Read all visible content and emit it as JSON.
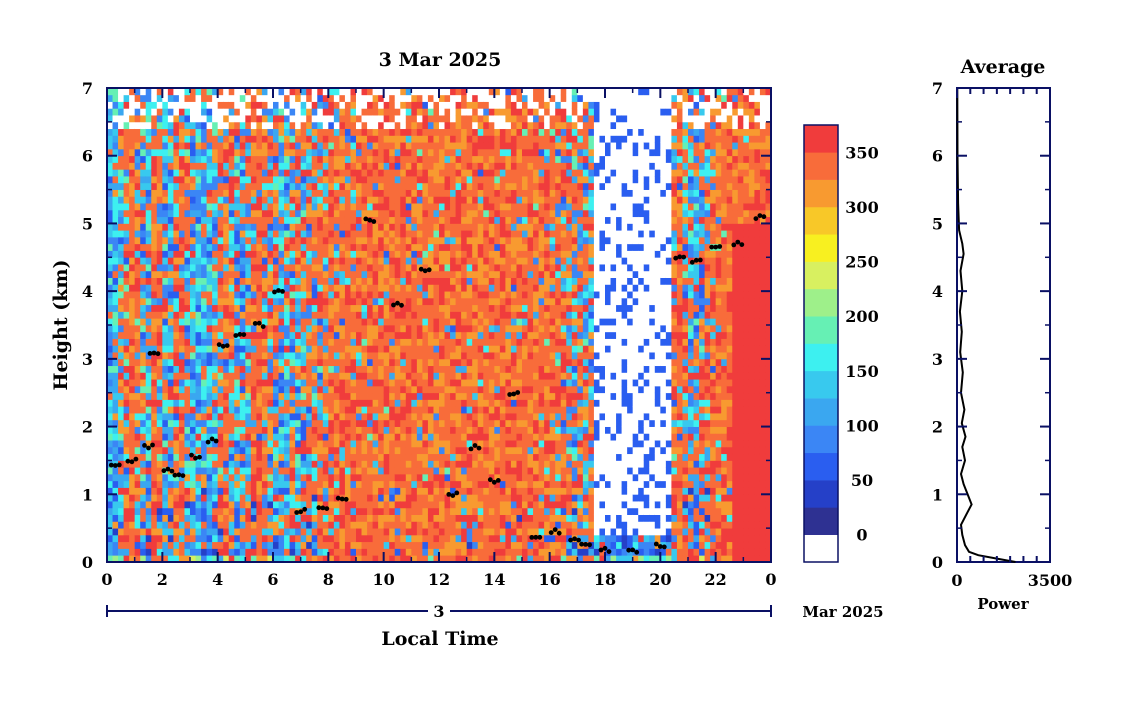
{
  "chart_data": [
    {
      "type": "heatmap",
      "title": "3 Mar 2025",
      "xlabel": "Local Time",
      "ylabel": "Height (km)",
      "xlim": [
        0,
        24
      ],
      "ylim": [
        0,
        7
      ],
      "x_ticks": [
        "0",
        "2",
        "4",
        "6",
        "8",
        "10",
        "12",
        "14",
        "16",
        "18",
        "20",
        "22",
        "0"
      ],
      "y_ticks": [
        "0",
        "1",
        "2",
        "3",
        "4",
        "5",
        "6",
        "7"
      ],
      "date_axis": {
        "day": "3",
        "month_label": "Mar 2025"
      },
      "colorbar": {
        "ticks": [
          "0",
          "50",
          "100",
          "150",
          "200",
          "250",
          "300",
          "350"
        ],
        "tick_values": [
          0,
          50,
          100,
          150,
          200,
          250,
          300,
          350
        ],
        "range": [
          -25,
          375
        ],
        "colors": [
          "#ffffff",
          "#2e3192",
          "#2540c8",
          "#2a5ef0",
          "#3b86f5",
          "#3aa7f0",
          "#38c9ee",
          "#3df0f0",
          "#66f0b4",
          "#9ef08a",
          "#d8f060",
          "#f8f020",
          "#f8c828",
          "#f89a30",
          "#f86c3a",
          "#f03c3c"
        ]
      },
      "time_columns": [
        {
          "t": 0.3,
          "hot": 0.1,
          "cloud": 1.45
        },
        {
          "t": 0.9,
          "hot": 0.95,
          "cloud": 1.5
        },
        {
          "t": 1.5,
          "hot": 0.15,
          "cloud": 1.7
        },
        {
          "t": 1.7,
          "hot": 0.95,
          "cloud": 3.1
        },
        {
          "t": 2.2,
          "hot": 0.15,
          "cloud": 1.35
        },
        {
          "t": 2.6,
          "hot": 0.95,
          "cloud": 1.3
        },
        {
          "t": 3.2,
          "hot": 0.15,
          "cloud": 1.55
        },
        {
          "t": 3.8,
          "hot": 0.2,
          "cloud": 1.8
        },
        {
          "t": 4.2,
          "hot": 0.95,
          "cloud": 3.2
        },
        {
          "t": 4.8,
          "hot": 0.2,
          "cloud": 3.35
        },
        {
          "t": 5.5,
          "hot": 0.95,
          "cloud": 3.5
        },
        {
          "t": 6.2,
          "hot": 0.3,
          "cloud": 4.0
        },
        {
          "t": 7.0,
          "hot": 0.45,
          "cloud": 0.75
        },
        {
          "t": 7.8,
          "hot": 0.7,
          "cloud": 0.8
        },
        {
          "t": 8.5,
          "hot": 0.9,
          "cloud": 0.95
        },
        {
          "t": 9.5,
          "hot": 0.92,
          "cloud": 5.05
        },
        {
          "t": 10.5,
          "hot": 0.92,
          "cloud": 3.8
        },
        {
          "t": 11.5,
          "hot": 0.92,
          "cloud": 4.3
        },
        {
          "t": 12.5,
          "hot": 0.92,
          "cloud": 1.0
        },
        {
          "t": 13.3,
          "hot": 0.92,
          "cloud": 1.7
        },
        {
          "t": 14.0,
          "hot": 0.98,
          "cloud": 1.2
        },
        {
          "t": 14.7,
          "hot": 0.9,
          "cloud": 2.5
        },
        {
          "t": 15.5,
          "hot": 0.9,
          "cloud": 0.35
        },
        {
          "t": 16.2,
          "hot": 0.85,
          "cloud": 0.45
        },
        {
          "t": 16.9,
          "hot": 0.5,
          "cloud": 0.35
        },
        {
          "t": 17.3,
          "hot": 0.6,
          "cloud": 0.25
        },
        {
          "t": 18.0,
          "hot": 0.1,
          "cloud": 0.18
        },
        {
          "t": 19.0,
          "hot": 0.05,
          "cloud": 0.15
        },
        {
          "t": 20.0,
          "hot": 0.05,
          "cloud": 0.25
        },
        {
          "t": 20.7,
          "hot": 0.85,
          "cloud": 4.5
        },
        {
          "t": 21.3,
          "hot": 0.3,
          "cloud": 4.45
        },
        {
          "t": 22.0,
          "hot": 0.85,
          "cloud": 4.65
        },
        {
          "t": 22.8,
          "hot": 0.99,
          "cloud": 4.7
        },
        {
          "t": 23.6,
          "hot": 0.99,
          "cloud": 5.1
        }
      ]
    },
    {
      "type": "line",
      "title": "Average",
      "xlabel": "Power",
      "ylabel": "",
      "xlim": [
        0,
        3500
      ],
      "ylim": [
        0,
        7
      ],
      "x_ticks": [
        "0",
        "3500"
      ],
      "y_ticks": [
        "0",
        "1",
        "2",
        "3",
        "4",
        "5",
        "6",
        "7"
      ],
      "series": [
        {
          "values": [
            [
              2200,
              0.0
            ],
            [
              1500,
              0.05
            ],
            [
              800,
              0.1
            ],
            [
              450,
              0.15
            ],
            [
              300,
              0.25
            ],
            [
              200,
              0.4
            ],
            [
              150,
              0.55
            ],
            [
              350,
              0.7
            ],
            [
              550,
              0.85
            ],
            [
              400,
              1.0
            ],
            [
              250,
              1.15
            ],
            [
              150,
              1.3
            ],
            [
              300,
              1.5
            ],
            [
              200,
              1.7
            ],
            [
              320,
              1.85
            ],
            [
              180,
              2.05
            ],
            [
              280,
              2.25
            ],
            [
              150,
              2.5
            ],
            [
              220,
              2.8
            ],
            [
              120,
              3.1
            ],
            [
              180,
              3.4
            ],
            [
              110,
              3.7
            ],
            [
              200,
              4.0
            ],
            [
              130,
              4.3
            ],
            [
              250,
              4.55
            ],
            [
              200,
              4.7
            ],
            [
              80,
              4.9
            ],
            [
              40,
              5.3
            ],
            [
              20,
              6.0
            ],
            [
              10,
              7.0
            ]
          ]
        }
      ]
    }
  ]
}
